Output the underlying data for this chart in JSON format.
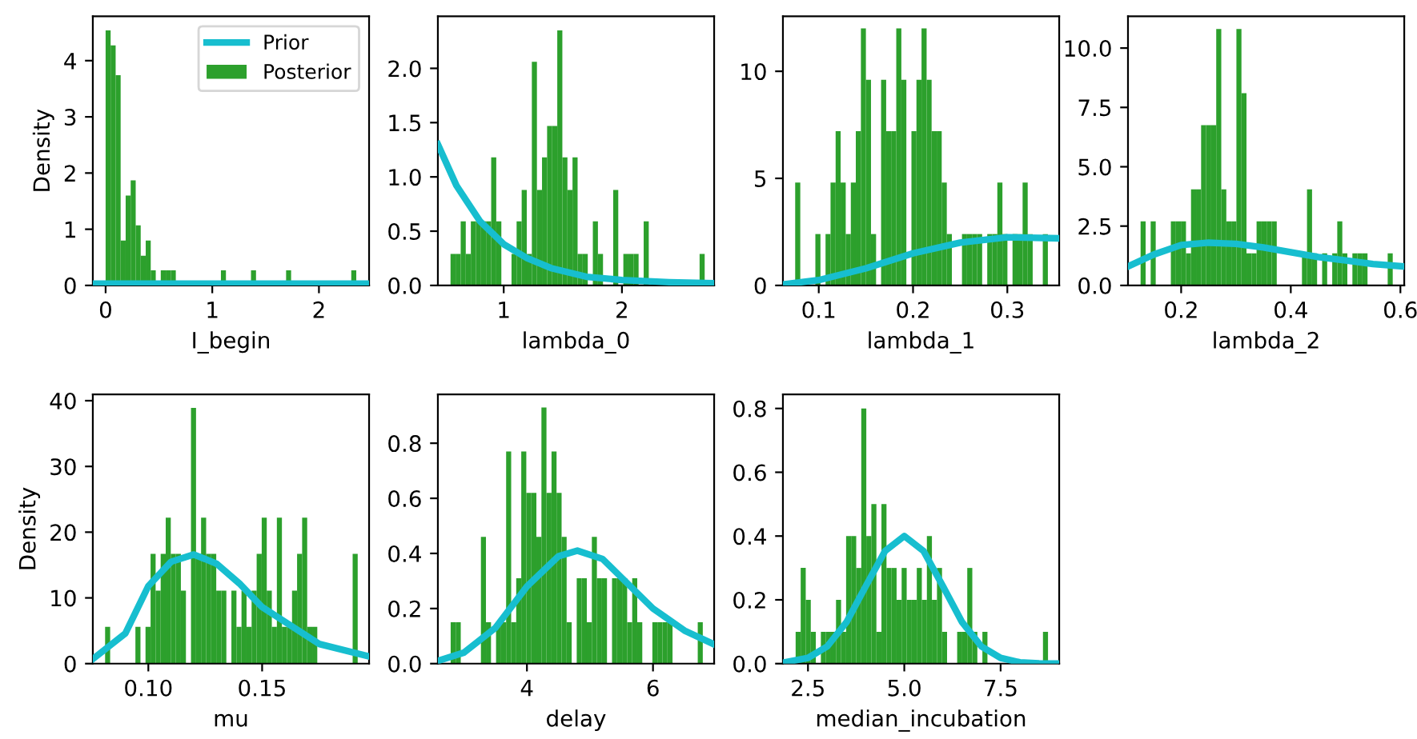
{
  "chart_data": [
    {
      "type": "histogram",
      "xlabel": "I_begin",
      "ylabel": "Density",
      "xlim": [
        -0.12,
        2.47
      ],
      "xticks": [
        0,
        1,
        2
      ],
      "ylim": [
        0,
        4.79
      ],
      "yticks": [
        0,
        1,
        2,
        3,
        4
      ],
      "legend": "top right",
      "series": [
        {
          "type": "line",
          "name": "Prior",
          "color": "#17becf",
          "x": [
            -0.12,
            0.5,
            1.0,
            1.5,
            2.0,
            2.47
          ],
          "values": [
            0.03,
            0.03,
            0.03,
            0.03,
            0.03,
            0.03
          ]
        },
        {
          "name": "Posterior",
          "color": "#2ca02c",
          "bins": [
            0,
            0.047,
            0.094,
            0.141,
            0.188,
            0.235,
            0.282,
            0.329,
            0.376,
            0.423,
            0.47,
            0.517,
            0.564,
            0.611,
            0.658,
            0.705,
            0.752,
            0.799,
            0.846,
            0.893,
            0.94,
            0.987,
            1.034,
            1.081,
            1.128,
            1.175,
            1.222,
            1.269,
            1.316,
            1.363,
            1.41,
            1.457,
            1.504,
            1.551,
            1.598,
            1.645,
            1.692,
            1.739,
            1.786,
            1.833,
            1.88,
            1.927,
            1.974,
            2.021,
            2.068,
            2.115,
            2.162,
            2.209,
            2.256,
            2.303,
            2.35
          ],
          "values": [
            4.54,
            4.27,
            3.74,
            0.8,
            1.6,
            1.87,
            1.07,
            0.53,
            0.8,
            0.27,
            0,
            0.27,
            0.27,
            0.27,
            0,
            0,
            0,
            0,
            0,
            0,
            0,
            0,
            0,
            0.27,
            0,
            0,
            0,
            0,
            0,
            0.27,
            0,
            0,
            0,
            0,
            0,
            0,
            0.27,
            0,
            0,
            0,
            0,
            0,
            0,
            0,
            0,
            0,
            0,
            0,
            0,
            0.27
          ]
        }
      ]
    },
    {
      "type": "histogram",
      "xlabel": "lambda_0",
      "xlim": [
        0.443,
        2.78
      ],
      "xticks": [
        1,
        2
      ],
      "ylim": [
        0,
        2.48
      ],
      "yticks": [
        {
          "value": 0,
          "label": "0.0"
        },
        0.5,
        {
          "value": 1,
          "label": "1.0"
        },
        1.5,
        {
          "value": 2,
          "label": "2.0"
        }
      ],
      "series": [
        {
          "type": "line",
          "color": "#17becf",
          "x": [
            0.443,
            0.6,
            0.8,
            1.0,
            1.2,
            1.4,
            1.7,
            2.0,
            2.4,
            2.78
          ],
          "values": [
            1.3,
            0.92,
            0.59,
            0.38,
            0.25,
            0.16,
            0.08,
            0.05,
            0.03,
            0.02
          ]
        },
        {
          "color": "#2ca02c",
          "bins": [
            0.55,
            0.593,
            0.636,
            0.679,
            0.722,
            0.765,
            0.808,
            0.851,
            0.894,
            0.937,
            0.98,
            1.023,
            1.066,
            1.109,
            1.152,
            1.195,
            1.238,
            1.281,
            1.324,
            1.367,
            1.41,
            1.453,
            1.496,
            1.539,
            1.582,
            1.625,
            1.668,
            1.711,
            1.754,
            1.797,
            1.84,
            1.883,
            1.926,
            1.969,
            2.012,
            2.055,
            2.098,
            2.141,
            2.184,
            2.227,
            2.27,
            2.313,
            2.356,
            2.399,
            2.442,
            2.485,
            2.528,
            2.571,
            2.614,
            2.657,
            2.7
          ],
          "values": [
            0.29,
            0.29,
            0.59,
            0.29,
            0.59,
            0.59,
            0.59,
            0.59,
            1.18,
            0.59,
            0,
            0,
            0.29,
            0.59,
            0.88,
            0.29,
            2.06,
            0.88,
            1.18,
            1.47,
            1.47,
            2.35,
            1.18,
            0.88,
            1.18,
            0.29,
            0.29,
            0,
            0.59,
            0.29,
            0,
            0,
            0.88,
            0,
            0.29,
            0.29,
            0.29,
            0,
            0.59,
            0,
            0,
            0,
            0,
            0,
            0,
            0,
            0,
            0,
            0,
            0.29
          ]
        }
      ]
    },
    {
      "type": "histogram",
      "xlabel": "lambda_1",
      "xlim": [
        0.062,
        0.355
      ],
      "xticks": [
        0.1,
        0.2,
        0.3
      ],
      "ylim": [
        0,
        12.57
      ],
      "yticks": [
        0,
        5,
        10
      ],
      "series": [
        {
          "type": "line",
          "color": "#17becf",
          "x": [
            0.062,
            0.1,
            0.15,
            0.2,
            0.25,
            0.3,
            0.355
          ],
          "values": [
            0.05,
            0.25,
            0.8,
            1.5,
            2.0,
            2.25,
            2.2
          ]
        },
        {
          "color": "#2ca02c",
          "bins": [
            0.075,
            0.0804,
            0.0857,
            0.0911,
            0.0964,
            0.1018,
            0.1072,
            0.1125,
            0.1179,
            0.1232,
            0.1286,
            0.134,
            0.1393,
            0.1447,
            0.15,
            0.1554,
            0.1608,
            0.1661,
            0.1715,
            0.1768,
            0.1822,
            0.1876,
            0.1929,
            0.1983,
            0.2036,
            0.209,
            0.2144,
            0.2197,
            0.2251,
            0.2304,
            0.2358,
            0.2412,
            0.2465,
            0.2519,
            0.2572,
            0.2626,
            0.268,
            0.2733,
            0.2787,
            0.284,
            0.2894,
            0.2948,
            0.3001,
            0.3055,
            0.3108,
            0.3162,
            0.3216,
            0.3269,
            0.3323,
            0.3376,
            0.343
          ],
          "values": [
            4.8,
            0,
            0,
            0,
            2.4,
            0,
            2.4,
            4.8,
            7.2,
            4.8,
            2.4,
            4.8,
            7.2,
            12.0,
            9.6,
            2.4,
            0,
            9.6,
            7.2,
            7.2,
            12.0,
            9.6,
            0,
            7.2,
            9.6,
            12.0,
            9.6,
            7.2,
            7.2,
            4.8,
            2.4,
            0,
            0,
            2.4,
            2.4,
            2.4,
            2.4,
            0,
            2.4,
            2.4,
            4.8,
            2.4,
            0,
            2.4,
            2.4,
            4.8,
            2.4,
            0,
            0,
            2.4
          ]
        }
      ]
    },
    {
      "type": "histogram",
      "xlabel": "lambda_2",
      "xlim": [
        0.103,
        0.607
      ],
      "xticks": [
        0.2,
        0.4,
        0.6
      ],
      "ylim": [
        0,
        11.34
      ],
      "yticks": [
        {
          "value": 0,
          "label": "0.0"
        },
        2.5,
        {
          "value": 5,
          "label": "5.0"
        },
        7.5,
        {
          "value": 10,
          "label": "10.0"
        }
      ],
      "series": [
        {
          "type": "line",
          "color": "#17becf",
          "x": [
            0.103,
            0.15,
            0.2,
            0.25,
            0.3,
            0.35,
            0.4,
            0.45,
            0.5,
            0.55,
            0.607
          ],
          "values": [
            0.8,
            1.3,
            1.7,
            1.8,
            1.75,
            1.6,
            1.4,
            1.2,
            1.05,
            0.9,
            0.8
          ]
        },
        {
          "color": "#2ca02c",
          "bins": [
            0.126,
            0.1352,
            0.1444,
            0.1536,
            0.1628,
            0.172,
            0.1812,
            0.1904,
            0.1996,
            0.2088,
            0.218,
            0.2272,
            0.2364,
            0.2456,
            0.2548,
            0.264,
            0.2732,
            0.2824,
            0.2916,
            0.3008,
            0.31,
            0.3192,
            0.3284,
            0.3376,
            0.3468,
            0.356,
            0.3652,
            0.3744,
            0.3836,
            0.3928,
            0.402,
            0.4112,
            0.4204,
            0.4296,
            0.4388,
            0.448,
            0.4572,
            0.4664,
            0.4756,
            0.4848,
            0.494,
            0.5032,
            0.5124,
            0.5216,
            0.5308,
            0.54,
            0.5492,
            0.5584,
            0.5676,
            0.5768,
            0.586
          ],
          "values": [
            2.7,
            0,
            2.7,
            0,
            0,
            0,
            2.7,
            2.7,
            2.7,
            1.35,
            4.05,
            4.05,
            6.75,
            6.75,
            6.75,
            10.8,
            4.05,
            2.7,
            2.7,
            10.8,
            8.1,
            1.35,
            1.35,
            2.7,
            2.7,
            2.7,
            2.7,
            0,
            0,
            0,
            0,
            0,
            1.35,
            4.05,
            1.35,
            0,
            1.35,
            0,
            1.35,
            2.7,
            1.35,
            0,
            1.35,
            1.35,
            1.35,
            0,
            0,
            0,
            0,
            1.35
          ]
        }
      ]
    },
    {
      "type": "histogram",
      "xlabel": "mu",
      "ylabel": "Density",
      "xlim": [
        0.0756,
        0.197
      ],
      "xticks": [
        {
          "value": 0.1,
          "label": "0.10"
        },
        0.15
      ],
      "ylim": [
        0,
        40.95
      ],
      "yticks": [
        0,
        10,
        20,
        30,
        40
      ],
      "series": [
        {
          "type": "line",
          "color": "#17becf",
          "x": [
            0.0756,
            0.0899,
            0.1,
            0.11,
            0.12,
            0.13,
            0.14,
            0.15,
            0.175,
            0.197
          ],
          "values": [
            0.7,
            4.6,
            11.8,
            15.5,
            16.6,
            15.2,
            12.2,
            8.6,
            3.0,
            1.1
          ]
        },
        {
          "color": "#2ca02c",
          "bins": [
            0.081,
            0.08322,
            0.08544,
            0.08766,
            0.08988,
            0.0921,
            0.09432,
            0.09654,
            0.09876,
            0.10098,
            0.1032,
            0.10542,
            0.10764,
            0.10986,
            0.11208,
            0.1143,
            0.11652,
            0.11874,
            0.12096,
            0.12318,
            0.1254,
            0.12762,
            0.12984,
            0.13206,
            0.13428,
            0.1365,
            0.13872,
            0.14094,
            0.14316,
            0.14538,
            0.1476,
            0.14982,
            0.15204,
            0.15426,
            0.15648,
            0.1587,
            0.16092,
            0.16314,
            0.16536,
            0.16758,
            0.1698,
            0.17202,
            0.17424,
            0.17646,
            0.17868,
            0.1809,
            0.18312,
            0.18534,
            0.18756,
            0.18978,
            0.192
          ],
          "values": [
            5.6,
            0,
            0,
            0,
            0,
            0,
            5.6,
            0,
            5.6,
            16.7,
            11.1,
            16.7,
            22.2,
            16.7,
            16.7,
            11.1,
            0,
            38.9,
            16.7,
            22.2,
            16.7,
            16.7,
            11.1,
            11.1,
            0,
            11.1,
            5.6,
            11.1,
            5.6,
            11.1,
            16.7,
            22.2,
            11.1,
            5.6,
            22.2,
            5.6,
            5.6,
            11.1,
            16.7,
            22.2,
            5.6,
            5.6,
            0,
            0,
            0,
            0,
            0,
            0,
            0,
            16.7
          ]
        }
      ]
    },
    {
      "type": "histogram",
      "xlabel": "delay",
      "xlim": [
        2.587,
        6.97
      ],
      "xticks": [
        4,
        6
      ],
      "ylim": [
        0,
        0.977
      ],
      "yticks": [
        {
          "value": 0,
          "label": "0.0"
        },
        0.2,
        0.4,
        0.6,
        0.8
      ],
      "series": [
        {
          "type": "line",
          "color": "#17becf",
          "x": [
            2.587,
            3.0,
            3.5,
            4.0,
            4.5,
            4.8,
            5.2,
            5.6,
            6.0,
            6.5,
            6.97
          ],
          "values": [
            0.01,
            0.04,
            0.13,
            0.28,
            0.39,
            0.41,
            0.38,
            0.29,
            0.2,
            0.12,
            0.07
          ]
        },
        {
          "color": "#2ca02c",
          "bins": [
            2.79,
            2.87,
            2.95,
            3.03,
            3.11,
            3.19,
            3.27,
            3.35,
            3.43,
            3.51,
            3.59,
            3.67,
            3.75,
            3.83,
            3.91,
            3.99,
            4.07,
            4.15,
            4.23,
            4.31,
            4.39,
            4.47,
            4.55,
            4.63,
            4.71,
            4.79,
            4.87,
            4.95,
            5.03,
            5.11,
            5.19,
            5.27,
            5.35,
            5.43,
            5.51,
            5.59,
            5.67,
            5.75,
            5.83,
            5.91,
            5.99,
            6.07,
            6.15,
            6.23,
            6.31,
            6.39,
            6.47,
            6.55,
            6.63,
            6.71,
            6.79
          ],
          "values": [
            0.15,
            0.15,
            0,
            0,
            0,
            0,
            0.46,
            0.15,
            0,
            0.15,
            0.15,
            0.77,
            0.15,
            0.31,
            0.77,
            0.62,
            0.62,
            0.46,
            0.93,
            0.62,
            0.77,
            0.62,
            0.46,
            0.15,
            0,
            0.31,
            0.31,
            0.15,
            0.46,
            0.31,
            0.31,
            0,
            0.31,
            0.31,
            0.31,
            0.15,
            0.31,
            0.15,
            0,
            0,
            0.15,
            0.15,
            0.15,
            0.15,
            0,
            0,
            0,
            0,
            0,
            0.15
          ]
        }
      ]
    },
    {
      "type": "histogram",
      "xlabel": "median_incubation",
      "xlim": [
        1.85,
        9.02
      ],
      "xticks": [
        2.5,
        {
          "value": 5,
          "label": "5.0"
        },
        7.5
      ],
      "ylim": [
        0,
        0.844
      ],
      "yticks": [
        {
          "value": 0,
          "label": "0.0"
        },
        0.2,
        0.4,
        0.6,
        0.8
      ],
      "series": [
        {
          "type": "line",
          "color": "#17becf",
          "x": [
            1.85,
            2.5,
            3.0,
            3.5,
            4.0,
            4.5,
            5.0,
            5.5,
            6.0,
            6.5,
            7.0,
            7.5,
            8.0,
            8.5,
            9.02
          ],
          "values": [
            0.003,
            0.018,
            0.054,
            0.13,
            0.243,
            0.353,
            0.4,
            0.353,
            0.243,
            0.13,
            0.054,
            0.018,
            0.004,
            0.001,
            0
          ]
        },
        {
          "color": "#2ca02c",
          "bins": [
            2.18,
            2.311,
            2.442,
            2.573,
            2.704,
            2.835,
            2.966,
            3.097,
            3.228,
            3.359,
            3.49,
            3.621,
            3.752,
            3.883,
            4.014,
            4.145,
            4.276,
            4.407,
            4.538,
            4.669,
            4.8,
            4.931,
            5.062,
            5.193,
            5.324,
            5.455,
            5.586,
            5.717,
            5.848,
            5.979,
            6.11,
            6.241,
            6.372,
            6.503,
            6.634,
            6.765,
            6.896,
            7.027,
            7.158,
            7.289,
            7.42,
            7.551,
            7.682,
            7.813,
            7.944,
            8.075,
            8.206,
            8.337,
            8.468,
            8.599,
            8.73
          ],
          "values": [
            0.1,
            0.3,
            0.2,
            0.1,
            0,
            0.1,
            0.1,
            0.1,
            0.2,
            0.1,
            0.4,
            0.4,
            0.3,
            0.8,
            0.4,
            0.5,
            0.1,
            0.5,
            0.3,
            0.3,
            0.2,
            0.3,
            0.2,
            0.2,
            0.3,
            0.2,
            0.4,
            0.2,
            0.3,
            0.1,
            0,
            0,
            0.1,
            0.1,
            0.3,
            0.1,
            0,
            0.1,
            0,
            0,
            0,
            0,
            0,
            0,
            0,
            0,
            0,
            0,
            0,
            0.1
          ]
        }
      ]
    }
  ]
}
